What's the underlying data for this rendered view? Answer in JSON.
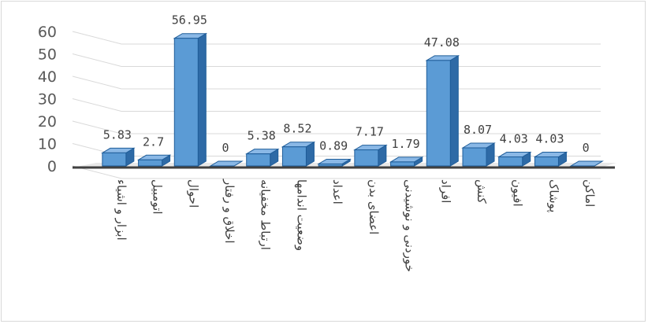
{
  "chart_data": {
    "type": "bar",
    "style": "3d-clustered-column",
    "categories": [
      "ابزار و اشیاء",
      "اتومبیل",
      "احوال",
      "اخلاق و رفتار",
      "ارتباط مخفیانه",
      "وضعیت اندامها",
      "اعداد",
      "اعضای بدن",
      "خوردنی و نوشیدنی",
      "افراد",
      "کنش",
      "افیون",
      "پوشاک",
      "اماکن"
    ],
    "series": [
      {
        "values": [
          5.83,
          2.7,
          56.95,
          0,
          5.38,
          8.52,
          0.89,
          7.17,
          1.79,
          47.08,
          8.07,
          4.03,
          4.03,
          0
        ],
        "labels": [
          "5.83",
          "2.7",
          "56.95",
          "0",
          "5.38",
          "8.52",
          "0.89",
          "7.17",
          "1.79",
          "47.08",
          "8.07",
          "4.03",
          "4.03",
          "0"
        ]
      }
    ],
    "y_ticks": [
      "0",
      "10",
      "20",
      "30",
      "40",
      "50",
      "60"
    ],
    "ylim": [
      0,
      60
    ],
    "grid": true,
    "legend": "none",
    "colors": {
      "bar_front": "#5b9bd5",
      "bar_side": "#2e6aa6",
      "bar_top": "#8ab8e6",
      "bar_edge": "#1f5d99",
      "grid": "#d9d9d9",
      "floor": "#404040"
    }
  }
}
